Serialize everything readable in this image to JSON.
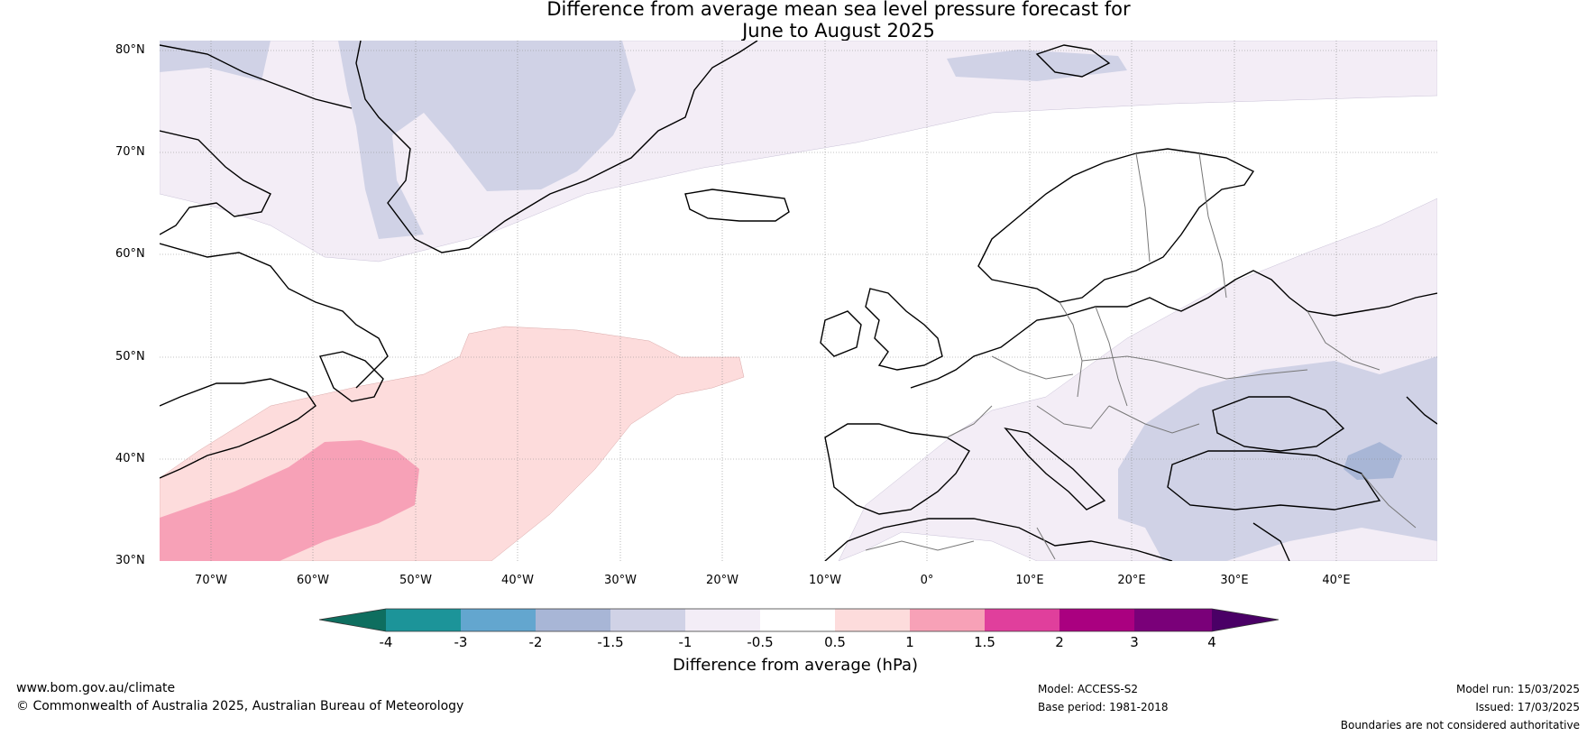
{
  "title_line1": "Difference from average mean sea level pressure forecast for",
  "title_line2": "June to August 2025",
  "lat_labels": [
    "80°N",
    "70°N",
    "60°N",
    "50°N",
    "40°N",
    "30°N"
  ],
  "lon_labels": [
    "70°W",
    "60°W",
    "50°W",
    "40°W",
    "30°W",
    "20°W",
    "10°W",
    "0°",
    "10°E",
    "20°E",
    "30°E",
    "40°E"
  ],
  "map_extent": {
    "lon_min": -75,
    "lon_max": 50,
    "lat_min": 30,
    "lat_max": 81
  },
  "colorbar": {
    "ticks": [
      "-4",
      "-3",
      "-2",
      "-1.5",
      "-1",
      "-0.5",
      "0.5",
      "1",
      "1.5",
      "2",
      "3",
      "4"
    ],
    "colors": [
      "#0e6e5f",
      "#1c9499",
      "#63a6cf",
      "#a8b6d6",
      "#d0d2e6",
      "#f3edf6",
      "#ffffff",
      "#fddcdc",
      "#f7a1b7",
      "#e03f9c",
      "#aa0080",
      "#7a0079",
      "#4a0066"
    ],
    "label": "Difference from average (hPa)"
  },
  "footer": {
    "website": "www.bom.gov.au/climate",
    "copyright": "© Commonwealth of Australia 2025, Australian Bureau of Meteorology",
    "model": "Model: ACCESS-S2",
    "base_period": "Base period: 1981-2018",
    "model_run": "Model run: 15/03/2025",
    "issued": "Issued: 17/03/2025",
    "disclaimer": "Boundaries are not considered authoritative"
  }
}
